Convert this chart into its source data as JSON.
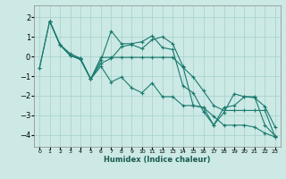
{
  "title": "",
  "xlabel": "Humidex (Indice chaleur)",
  "ylabel": "",
  "bg_color": "#cce9e5",
  "grid_color": "#aad4cf",
  "line_color": "#1a7a6e",
  "xlim": [
    -0.5,
    23.5
  ],
  "ylim": [
    -4.6,
    2.6
  ],
  "xticks": [
    0,
    1,
    2,
    3,
    4,
    5,
    6,
    7,
    8,
    9,
    10,
    11,
    12,
    13,
    14,
    15,
    16,
    17,
    18,
    19,
    20,
    21,
    22,
    23
  ],
  "yticks": [
    -4,
    -3,
    -2,
    -1,
    0,
    1,
    2
  ],
  "series": [
    [
      null,
      1.8,
      0.6,
      0.05,
      -0.1,
      -1.15,
      -0.2,
      1.3,
      0.65,
      0.65,
      0.75,
      1.05,
      0.45,
      0.35,
      -1.5,
      -1.85,
      -2.8,
      -3.5,
      -2.85,
      -1.9,
      -2.05,
      -2.1,
      -2.55,
      -3.6
    ],
    [
      null,
      1.8,
      0.6,
      0.15,
      -0.1,
      -1.15,
      -0.35,
      -0.1,
      0.5,
      0.6,
      0.4,
      0.85,
      1.0,
      0.65,
      -0.5,
      -2.5,
      -2.6,
      -3.5,
      -2.6,
      -2.5,
      -2.05,
      -2.05,
      -3.5,
      -4.05
    ],
    [
      -0.6,
      1.8,
      0.6,
      0.05,
      -0.15,
      -1.15,
      -0.05,
      -0.05,
      -0.05,
      -0.05,
      -0.05,
      -0.05,
      -0.05,
      -0.05,
      -0.55,
      -1.05,
      -1.75,
      -2.5,
      -2.75,
      -2.75,
      -2.75,
      -2.75,
      -2.75,
      -4.1
    ],
    [
      -0.6,
      1.8,
      0.6,
      0.05,
      -0.15,
      -1.15,
      -0.5,
      -1.3,
      -1.05,
      -1.6,
      -1.85,
      -1.35,
      -2.05,
      -2.05,
      -2.5,
      -2.5,
      -2.6,
      -3.05,
      -3.5,
      -3.5,
      -3.5,
      -3.6,
      -3.9,
      -4.1
    ]
  ]
}
